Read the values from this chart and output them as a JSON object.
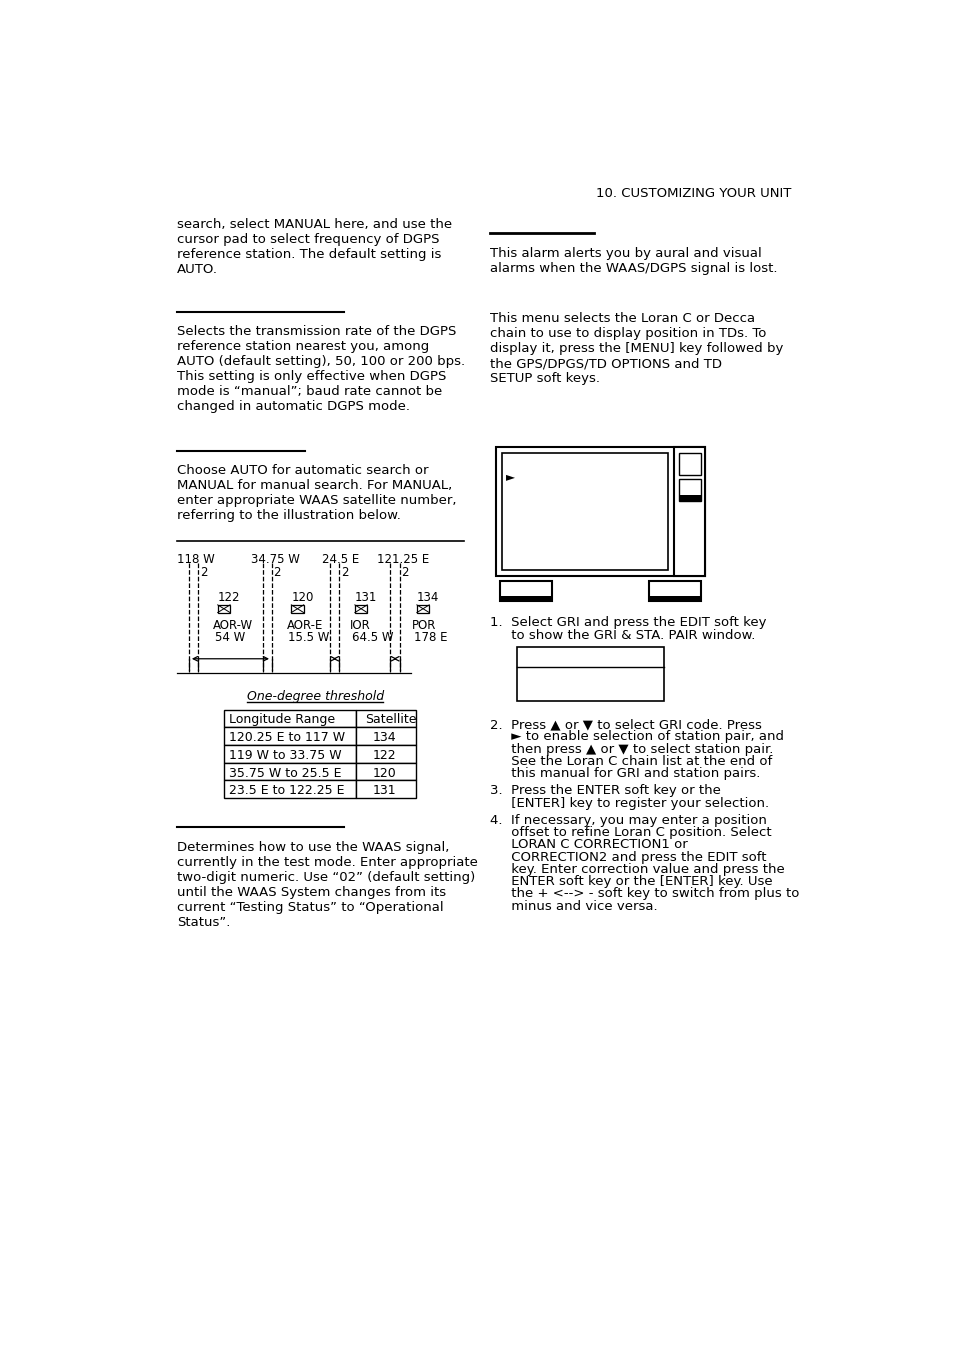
{
  "page_header": "10. CUSTOMIZING YOUR UNIT",
  "left_col": {
    "para1": "search, select MANUAL here, and use the\ncursor pad to select frequency of DGPS\nreference station. The default setting is\nAUTO.",
    "para2": "Selects the transmission rate of the DGPS\nreference station nearest you, among\nAUTO (default setting), 50, 100 or 200 bps.\nThis setting is only effective when DGPS\nmode is “manual”; baud rate cannot be\nchanged in automatic DGPS mode.",
    "para3": "Choose AUTO for automatic search or\nMANUAL for manual search. For MANUAL,\nenter appropriate WAAS satellite number,\nreferring to the illustration below.",
    "diagram_header": "One-degree threshold",
    "table_headers": [
      "Longitude Range",
      "Satellite"
    ],
    "table_rows": [
      [
        "120.25 E to 117 W",
        "134"
      ],
      [
        "119 W to 33.75 W",
        "122"
      ],
      [
        "35.75 W to 25.5 E",
        "120"
      ],
      [
        "23.5 E to 122.25 E",
        "131"
      ]
    ],
    "para5": "Determines how to use the WAAS signal,\ncurrently in the test mode. Enter appropriate\ntwo-digit numeric. Use “02” (default setting)\nuntil the WAAS System changes from its\ncurrent “Testing Status” to “Operational\nStatus”."
  },
  "right_col": {
    "para1": "This alarm alerts you by aural and visual\nalarms when the WAAS/DGPS signal is lost.",
    "para2": "This menu selects the Loran C or Decca\nchain to use to display position in TDs. To\ndisplay it, press the [MENU] key followed by\nthe GPS/DPGS/TD OPTIONS and TD\nSETUP soft keys.",
    "step1a": "1.  Select GRI and press the EDIT soft key",
    "step1b": "     to show the GRI & STA. PAIR window.",
    "step2a": "2.  Press ▲ or ▼ to select GRI code. Press",
    "step2b": "     ► to enable selection of station pair, and",
    "step2c": "     then press ▲ or ▼ to select station pair.",
    "step2d": "     See the Loran C chain list at the end of",
    "step2e": "     this manual for GRI and station pairs.",
    "step3a": "3.  Press the ENTER soft key or the",
    "step3b": "     [ENTER] key to register your selection.",
    "step4a": "4.  If necessary, you may enter a position",
    "step4b": "     offset to refine Loran C position. Select",
    "step4c": "     LORAN C CORRECTION1 or",
    "step4d": "     CORRECTION2 and press the EDIT soft",
    "step4e": "     key. Enter correction value and press the",
    "step4f": "     ENTER soft key or the [ENTER] key. Use",
    "step4g": "     the + <--> - soft key to switch from plus to",
    "step4h": "     minus and vice versa."
  },
  "bg_color": "#ffffff",
  "text_color": "#000000",
  "font_size": 9.5,
  "small_font": 8.5
}
